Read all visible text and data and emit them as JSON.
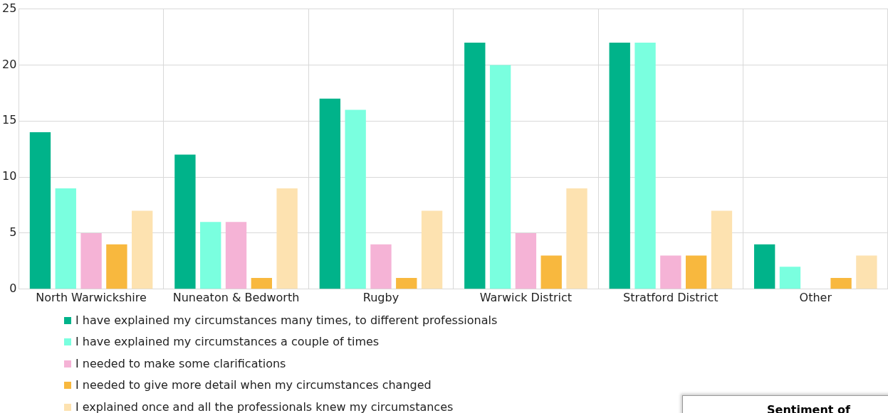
{
  "chart_data": {
    "type": "bar",
    "categories": [
      "North Warwickshire",
      "Nuneaton & Bedworth",
      "Rugby",
      "Warwick District",
      "Stratford District",
      "Other"
    ],
    "series": [
      {
        "name": "I have explained my circumstances many times, to different professionals",
        "color": "#00b38a",
        "values": [
          14,
          12,
          17,
          22,
          22,
          4
        ]
      },
      {
        "name": "I have explained my circumstances a couple of times",
        "color": "#7affdf",
        "values": [
          9,
          6,
          16,
          20,
          22,
          2
        ]
      },
      {
        "name": "I needed to make some clarifications",
        "color": "#f5b3d6",
        "values": [
          5,
          6,
          4,
          5,
          3,
          0
        ]
      },
      {
        "name": "I needed to give more detail when my circumstances changed",
        "color": "#f8b83e",
        "values": [
          4,
          1,
          1,
          3,
          3,
          1
        ]
      },
      {
        "name": "I explained once and all the professionals knew my circumstances",
        "color": "#fde2b0",
        "values": [
          7,
          9,
          7,
          9,
          7,
          3
        ]
      }
    ],
    "ylim": [
      0,
      25
    ],
    "yticks": [
      0,
      5,
      10,
      15,
      20,
      25
    ],
    "grid": true,
    "legend": "bottom",
    "annotations": [
      "Sentiment of"
    ]
  }
}
